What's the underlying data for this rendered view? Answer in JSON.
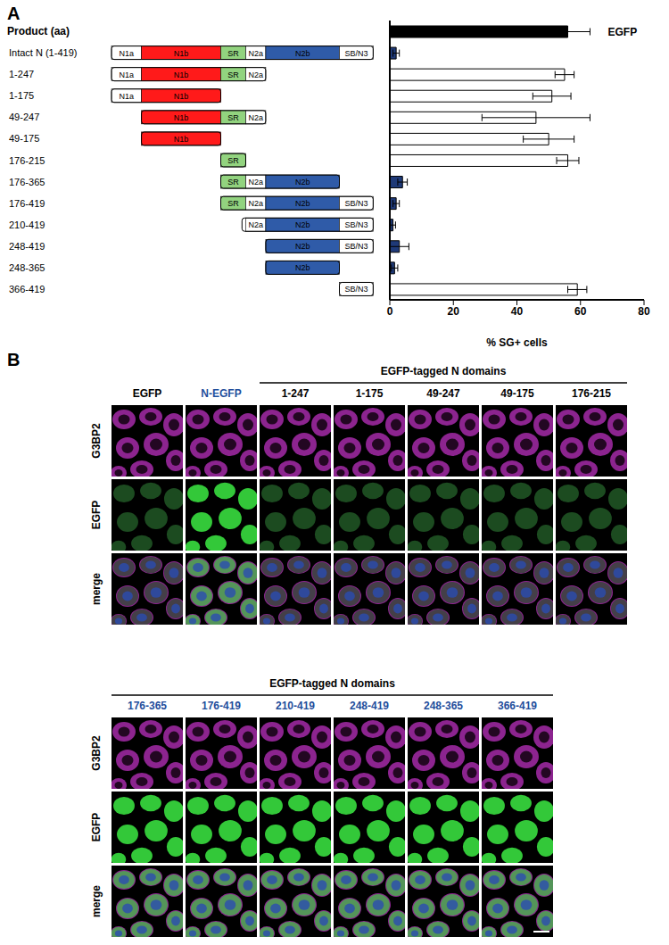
{
  "chart_data": {
    "type": "bar",
    "orientation": "horizontal",
    "panel_label": "A",
    "header": "Product (aa)",
    "categories": [
      null,
      "Intact N (1-419)",
      "1-247",
      "1-175",
      "49-247",
      "49-175",
      "176-215",
      "176-365",
      "176-419",
      "210-419",
      "248-419",
      "248-365",
      "366-419"
    ],
    "values": [
      56,
      2,
      55,
      51,
      46,
      50,
      56,
      4,
      2,
      1,
      3,
      1.5,
      59
    ],
    "errors": [
      7,
      1,
      3,
      6,
      17,
      8,
      3.5,
      1.5,
      1,
      0.8,
      3,
      1,
      3
    ],
    "colors": [
      "#000000",
      "#1f3a78",
      "#ffffff",
      "#ffffff",
      "#ffffff",
      "#ffffff",
      "#ffffff",
      "#1f3a78",
      "#1f3a78",
      "#1f3a78",
      "#1f3a78",
      "#1f3a78",
      "#ffffff"
    ],
    "annotations": [
      {
        "text": "EGFP",
        "index": 0
      }
    ],
    "x_label": "% SG+ cells",
    "xlim": [
      0,
      80
    ],
    "xticks": [
      0,
      20,
      40,
      60,
      80
    ],
    "constructs": [
      null,
      [
        1,
        419
      ],
      [
        1,
        247
      ],
      [
        1,
        175
      ],
      [
        49,
        247
      ],
      [
        49,
        175
      ],
      [
        176,
        215
      ],
      [
        176,
        365
      ],
      [
        176,
        419
      ],
      [
        210,
        419
      ],
      [
        248,
        419
      ],
      [
        248,
        365
      ],
      [
        366,
        419
      ]
    ],
    "domains": [
      {
        "name": "N1a",
        "start": 1,
        "end": 48,
        "color": "#ffffff"
      },
      {
        "name": "N1b",
        "start": 49,
        "end": 175,
        "color": "#ff1a1a"
      },
      {
        "name": "SR",
        "start": 176,
        "end": 215,
        "color": "#92d37f"
      },
      {
        "name": "N2a",
        "start": 216,
        "end": 247,
        "color": "#ffffff"
      },
      {
        "name": "N2b",
        "start": 248,
        "end": 365,
        "color": "#2f5ba8"
      },
      {
        "name": "SB/N3",
        "start": 366,
        "end": 419,
        "color": "#ffffff"
      }
    ]
  },
  "panel_b": {
    "panel_label": "B",
    "groups": [
      {
        "header": "EGFP-tagged N domains",
        "header_columns": [
          2,
          6
        ],
        "rows": [
          "G3BP2",
          "EGFP",
          "merge"
        ],
        "columns": [
          {
            "label": "EGFP",
            "color": "#000000"
          },
          {
            "label": "N-EGFP",
            "color": "#1f4e9c"
          },
          {
            "label": "1-247",
            "color": "#000000"
          },
          {
            "label": "1-175",
            "color": "#000000"
          },
          {
            "label": "49-247",
            "color": "#000000"
          },
          {
            "label": "49-175",
            "color": "#000000"
          },
          {
            "label": "176-215",
            "color": "#000000"
          }
        ]
      },
      {
        "header": "EGFP-tagged N domains",
        "header_columns": [
          0,
          5
        ],
        "rows": [
          "G3BP2",
          "EGFP",
          "merge"
        ],
        "columns": [
          {
            "label": "176-365",
            "color": "#1f4e9c"
          },
          {
            "label": "176-419",
            "color": "#1f4e9c"
          },
          {
            "label": "210-419",
            "color": "#1f4e9c"
          },
          {
            "label": "248-419",
            "color": "#1f4e9c"
          },
          {
            "label": "248-365",
            "color": "#1f4e9c"
          },
          {
            "label": "366-419",
            "color": "#1f4e9c"
          }
        ]
      }
    ]
  }
}
